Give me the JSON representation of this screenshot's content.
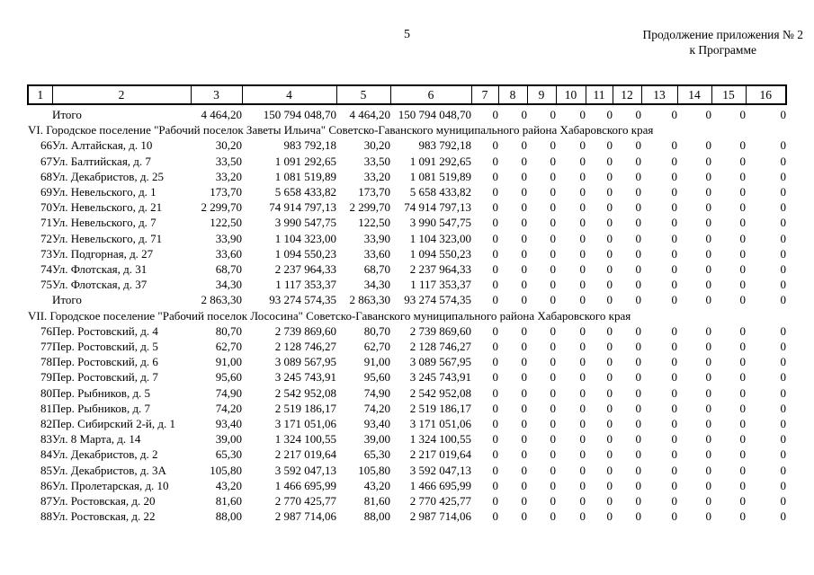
{
  "page": {
    "number": "5",
    "appendix_note_line1": "Продолжение приложения № 2",
    "appendix_note_line2": "к Программе"
  },
  "table": {
    "column_numbers": [
      "1",
      "2",
      "3",
      "4",
      "5",
      "6",
      "7",
      "8",
      "9",
      "10",
      "11",
      "12",
      "13",
      "14",
      "15",
      "16"
    ],
    "rows": [
      {
        "type": "total",
        "label": "Итого",
        "values": [
          "4 464,20",
          "150 794 048,70",
          "4 464,20",
          "150 794 048,70",
          "0",
          "0",
          "0",
          "0",
          "0",
          "0",
          "0",
          "0",
          "0",
          "0"
        ]
      },
      {
        "type": "section",
        "text": "VI. Городское поселение \"Рабочий поселок Заветы Ильича\" Советско-Гаванского муниципального района Хабаровского края"
      },
      {
        "type": "data",
        "num": "66",
        "address": "Ул. Алтайская, д. 10",
        "values": [
          "30,20",
          "983 792,18",
          "30,20",
          "983 792,18",
          "0",
          "0",
          "0",
          "0",
          "0",
          "0",
          "0",
          "0",
          "0",
          "0"
        ]
      },
      {
        "type": "data",
        "num": "67",
        "address": "Ул. Балтийская, д. 7",
        "values": [
          "33,50",
          "1 091 292,65",
          "33,50",
          "1 091 292,65",
          "0",
          "0",
          "0",
          "0",
          "0",
          "0",
          "0",
          "0",
          "0",
          "0"
        ]
      },
      {
        "type": "data",
        "num": "68",
        "address": "Ул. Декабристов, д. 25",
        "values": [
          "33,20",
          "1 081 519,89",
          "33,20",
          "1 081 519,89",
          "0",
          "0",
          "0",
          "0",
          "0",
          "0",
          "0",
          "0",
          "0",
          "0"
        ]
      },
      {
        "type": "data",
        "num": "69",
        "address": "Ул. Невельского, д. 1",
        "values": [
          "173,70",
          "5 658 433,82",
          "173,70",
          "5 658 433,82",
          "0",
          "0",
          "0",
          "0",
          "0",
          "0",
          "0",
          "0",
          "0",
          "0"
        ]
      },
      {
        "type": "data",
        "num": "70",
        "address": "Ул. Невельского, д. 21",
        "values": [
          "2 299,70",
          "74 914 797,13",
          "2 299,70",
          "74 914 797,13",
          "0",
          "0",
          "0",
          "0",
          "0",
          "0",
          "0",
          "0",
          "0",
          "0"
        ]
      },
      {
        "type": "data",
        "num": "71",
        "address": "Ул. Невельского, д. 7",
        "values": [
          "122,50",
          "3 990 547,75",
          "122,50",
          "3 990 547,75",
          "0",
          "0",
          "0",
          "0",
          "0",
          "0",
          "0",
          "0",
          "0",
          "0"
        ]
      },
      {
        "type": "data",
        "num": "72",
        "address": "Ул. Невельского, д. 71",
        "values": [
          "33,90",
          "1 104 323,00",
          "33,90",
          "1 104 323,00",
          "0",
          "0",
          "0",
          "0",
          "0",
          "0",
          "0",
          "0",
          "0",
          "0"
        ]
      },
      {
        "type": "data",
        "num": "73",
        "address": "Ул. Подгорная, д. 27",
        "values": [
          "33,60",
          "1 094 550,23",
          "33,60",
          "1 094 550,23",
          "0",
          "0",
          "0",
          "0",
          "0",
          "0",
          "0",
          "0",
          "0",
          "0"
        ]
      },
      {
        "type": "data",
        "num": "74",
        "address": "Ул. Флотская, д. 31",
        "values": [
          "68,70",
          "2 237 964,33",
          "68,70",
          "2 237 964,33",
          "0",
          "0",
          "0",
          "0",
          "0",
          "0",
          "0",
          "0",
          "0",
          "0"
        ]
      },
      {
        "type": "data",
        "num": "75",
        "address": "Ул. Флотская, д. 37",
        "values": [
          "34,30",
          "1 117 353,37",
          "34,30",
          "1 117 353,37",
          "0",
          "0",
          "0",
          "0",
          "0",
          "0",
          "0",
          "0",
          "0",
          "0"
        ]
      },
      {
        "type": "total",
        "label": "Итого",
        "values": [
          "2 863,30",
          "93 274 574,35",
          "2 863,30",
          "93 274 574,35",
          "0",
          "0",
          "0",
          "0",
          "0",
          "0",
          "0",
          "0",
          "0",
          "0"
        ]
      },
      {
        "type": "section",
        "text": "VII. Городское поселение \"Рабочий поселок Лососина\" Советско-Гаванского муниципального района Хабаровского края"
      },
      {
        "type": "data",
        "num": "76",
        "address": "Пер. Ростовский, д. 4",
        "values": [
          "80,70",
          "2 739 869,60",
          "80,70",
          "2 739 869,60",
          "0",
          "0",
          "0",
          "0",
          "0",
          "0",
          "0",
          "0",
          "0",
          "0"
        ]
      },
      {
        "type": "data",
        "num": "77",
        "address": "Пер. Ростовский, д. 5",
        "values": [
          "62,70",
          "2 128 746,27",
          "62,70",
          "2 128 746,27",
          "0",
          "0",
          "0",
          "0",
          "0",
          "0",
          "0",
          "0",
          "0",
          "0"
        ]
      },
      {
        "type": "data",
        "num": "78",
        "address": "Пер. Ростовский, д. 6",
        "values": [
          "91,00",
          "3 089 567,95",
          "91,00",
          "3 089 567,95",
          "0",
          "0",
          "0",
          "0",
          "0",
          "0",
          "0",
          "0",
          "0",
          "0"
        ]
      },
      {
        "type": "data",
        "num": "79",
        "address": "Пер. Ростовский, д. 7",
        "values": [
          "95,60",
          "3 245 743,91",
          "95,60",
          "3 245 743,91",
          "0",
          "0",
          "0",
          "0",
          "0",
          "0",
          "0",
          "0",
          "0",
          "0"
        ]
      },
      {
        "type": "data",
        "num": "80",
        "address": "Пер. Рыбников, д. 5",
        "values": [
          "74,90",
          "2 542 952,08",
          "74,90",
          "2 542 952,08",
          "0",
          "0",
          "0",
          "0",
          "0",
          "0",
          "0",
          "0",
          "0",
          "0"
        ]
      },
      {
        "type": "data",
        "num": "81",
        "address": "Пер. Рыбников, д. 7",
        "values": [
          "74,20",
          "2 519 186,17",
          "74,20",
          "2 519 186,17",
          "0",
          "0",
          "0",
          "0",
          "0",
          "0",
          "0",
          "0",
          "0",
          "0"
        ]
      },
      {
        "type": "data",
        "num": "82",
        "address": "Пер. Сибирский 2-й, д. 1",
        "values": [
          "93,40",
          "3 171 051,06",
          "93,40",
          "3 171 051,06",
          "0",
          "0",
          "0",
          "0",
          "0",
          "0",
          "0",
          "0",
          "0",
          "0"
        ]
      },
      {
        "type": "data",
        "num": "83",
        "address": "Ул. 8 Марта, д. 14",
        "values": [
          "39,00",
          "1 324 100,55",
          "39,00",
          "1 324 100,55",
          "0",
          "0",
          "0",
          "0",
          "0",
          "0",
          "0",
          "0",
          "0",
          "0"
        ]
      },
      {
        "type": "data",
        "num": "84",
        "address": "Ул. Декабристов, д. 2",
        "values": [
          "65,30",
          "2 217 019,64",
          "65,30",
          "2 217 019,64",
          "0",
          "0",
          "0",
          "0",
          "0",
          "0",
          "0",
          "0",
          "0",
          "0"
        ]
      },
      {
        "type": "data",
        "num": "85",
        "address": "Ул. Декабристов, д. 3А",
        "values": [
          "105,80",
          "3 592 047,13",
          "105,80",
          "3 592 047,13",
          "0",
          "0",
          "0",
          "0",
          "0",
          "0",
          "0",
          "0",
          "0",
          "0"
        ]
      },
      {
        "type": "data",
        "num": "86",
        "address": "Ул. Пролетарская, д. 10",
        "values": [
          "43,20",
          "1 466 695,99",
          "43,20",
          "1 466 695,99",
          "0",
          "0",
          "0",
          "0",
          "0",
          "0",
          "0",
          "0",
          "0",
          "0"
        ]
      },
      {
        "type": "data",
        "num": "87",
        "address": "Ул. Ростовская, д. 20",
        "values": [
          "81,60",
          "2 770 425,77",
          "81,60",
          "2 770 425,77",
          "0",
          "0",
          "0",
          "0",
          "0",
          "0",
          "0",
          "0",
          "0",
          "0"
        ]
      },
      {
        "type": "data",
        "num": "88",
        "address": "Ул. Ростовская, д. 22",
        "values": [
          "88,00",
          "2 987 714,06",
          "88,00",
          "2 987 714,06",
          "0",
          "0",
          "0",
          "0",
          "0",
          "0",
          "0",
          "0",
          "0",
          "0"
        ]
      }
    ]
  }
}
